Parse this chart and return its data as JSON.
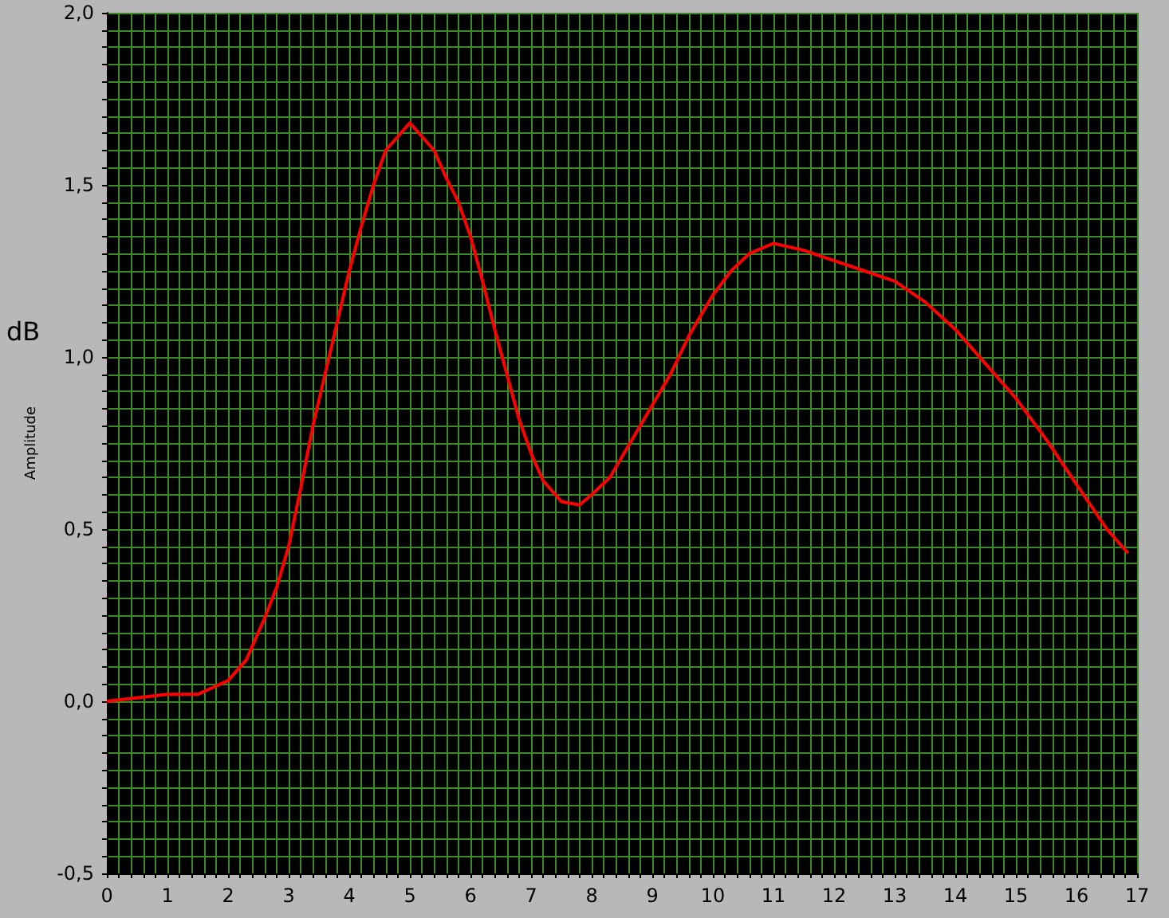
{
  "chart_data": {
    "type": "line",
    "ylabel": "Amplitude",
    "annotations": [
      "dB"
    ],
    "xlim": [
      0,
      17
    ],
    "xticks": [
      0,
      {
        "value": 0.2,
        "label": null
      },
      {
        "value": 0.4,
        "label": null
      },
      {
        "value": 0.6,
        "label": null
      },
      {
        "value": 0.8,
        "label": null
      },
      1,
      {
        "value": 1.2,
        "label": null
      },
      {
        "value": 1.4,
        "label": null
      },
      {
        "value": 1.6,
        "label": null
      },
      {
        "value": 1.8,
        "label": null
      },
      2,
      {
        "value": 2.2,
        "label": null
      },
      {
        "value": 2.4,
        "label": null
      },
      {
        "value": 2.6,
        "label": null
      },
      {
        "value": 2.8,
        "label": null
      },
      3,
      {
        "value": 3.2,
        "label": null
      },
      {
        "value": 3.4,
        "label": null
      },
      {
        "value": 3.6,
        "label": null
      },
      {
        "value": 3.8,
        "label": null
      },
      4,
      {
        "value": 4.2,
        "label": null
      },
      {
        "value": 4.4,
        "label": null
      },
      {
        "value": 4.6,
        "label": null
      },
      {
        "value": 4.8,
        "label": null
      },
      5,
      {
        "value": 5.2,
        "label": null
      },
      {
        "value": 5.4,
        "label": null
      },
      {
        "value": 5.6,
        "label": null
      },
      {
        "value": 5.8,
        "label": null
      },
      6,
      {
        "value": 6.2,
        "label": null
      },
      {
        "value": 6.4,
        "label": null
      },
      {
        "value": 6.6,
        "label": null
      },
      {
        "value": 6.8,
        "label": null
      },
      7,
      {
        "value": 7.2,
        "label": null
      },
      {
        "value": 7.4,
        "label": null
      },
      {
        "value": 7.6,
        "label": null
      },
      {
        "value": 7.8,
        "label": null
      },
      8,
      {
        "value": 8.2,
        "label": null
      },
      {
        "value": 8.4,
        "label": null
      },
      {
        "value": 8.6,
        "label": null
      },
      {
        "value": 8.8,
        "label": null
      },
      9,
      {
        "value": 9.2,
        "label": null
      },
      {
        "value": 9.4,
        "label": null
      },
      {
        "value": 9.6,
        "label": null
      },
      {
        "value": 9.8,
        "label": null
      },
      10,
      {
        "value": 10.2,
        "label": null
      },
      {
        "value": 10.4,
        "label": null
      },
      {
        "value": 10.6,
        "label": null
      },
      {
        "value": 10.8,
        "label": null
      },
      11,
      {
        "value": 11.2,
        "label": null
      },
      {
        "value": 11.4,
        "label": null
      },
      {
        "value": 11.6,
        "label": null
      },
      {
        "value": 11.8,
        "label": null
      },
      12,
      {
        "value": 12.2,
        "label": null
      },
      {
        "value": 12.4,
        "label": null
      },
      {
        "value": 12.6,
        "label": null
      },
      {
        "value": 12.8,
        "label": null
      },
      13,
      {
        "value": 13.2,
        "label": null
      },
      {
        "value": 13.4,
        "label": null
      },
      {
        "value": 13.6,
        "label": null
      },
      {
        "value": 13.8,
        "label": null
      },
      14,
      {
        "value": 14.2,
        "label": null
      },
      {
        "value": 14.4,
        "label": null
      },
      {
        "value": 14.6,
        "label": null
      },
      {
        "value": 14.8,
        "label": null
      },
      15,
      {
        "value": 15.2,
        "label": null
      },
      {
        "value": 15.4,
        "label": null
      },
      {
        "value": 15.6,
        "label": null
      },
      {
        "value": 15.8,
        "label": null
      },
      16,
      {
        "value": 16.2,
        "label": null
      },
      {
        "value": 16.4,
        "label": null
      },
      {
        "value": 16.6,
        "label": null
      },
      {
        "value": 16.8,
        "label": null
      },
      17
    ],
    "ylim": [
      -0.5,
      2
    ],
    "yticks": [
      {
        "value": -0.5,
        "label": "-0,5"
      },
      {
        "value": -0.45,
        "label": null
      },
      {
        "value": -0.4,
        "label": null
      },
      {
        "value": -0.35,
        "label": null
      },
      {
        "value": -0.3,
        "label": null
      },
      {
        "value": -0.25,
        "label": null
      },
      {
        "value": -0.2,
        "label": null
      },
      {
        "value": -0.15,
        "label": null
      },
      {
        "value": -0.1,
        "label": null
      },
      {
        "value": -0.05,
        "label": null
      },
      {
        "value": 0,
        "label": "0,0"
      },
      {
        "value": 0.05,
        "label": null
      },
      {
        "value": 0.1,
        "label": null
      },
      {
        "value": 0.15,
        "label": null
      },
      {
        "value": 0.2,
        "label": null
      },
      {
        "value": 0.25,
        "label": null
      },
      {
        "value": 0.3,
        "label": null
      },
      {
        "value": 0.35,
        "label": null
      },
      {
        "value": 0.4,
        "label": null
      },
      {
        "value": 0.45,
        "label": null
      },
      {
        "value": 0.5,
        "label": "0,5"
      },
      {
        "value": 0.55,
        "label": null
      },
      {
        "value": 0.6,
        "label": null
      },
      {
        "value": 0.65,
        "label": null
      },
      {
        "value": 0.7,
        "label": null
      },
      {
        "value": 0.75,
        "label": null
      },
      {
        "value": 0.8,
        "label": null
      },
      {
        "value": 0.85,
        "label": null
      },
      {
        "value": 0.9,
        "label": null
      },
      {
        "value": 0.95,
        "label": null
      },
      {
        "value": 1,
        "label": "1,0"
      },
      {
        "value": 1.05,
        "label": null
      },
      {
        "value": 1.1,
        "label": null
      },
      {
        "value": 1.15,
        "label": null
      },
      {
        "value": 1.2,
        "label": null
      },
      {
        "value": 1.25,
        "label": null
      },
      {
        "value": 1.3,
        "label": null
      },
      {
        "value": 1.35,
        "label": null
      },
      {
        "value": 1.4,
        "label": null
      },
      {
        "value": 1.45,
        "label": null
      },
      {
        "value": 1.5,
        "label": "1,5"
      },
      {
        "value": 1.55,
        "label": null
      },
      {
        "value": 1.6,
        "label": null
      },
      {
        "value": 1.65,
        "label": null
      },
      {
        "value": 1.7,
        "label": null
      },
      {
        "value": 1.75,
        "label": null
      },
      {
        "value": 1.8,
        "label": null
      },
      {
        "value": 1.85,
        "label": null
      },
      {
        "value": 1.9,
        "label": null
      },
      {
        "value": 1.95,
        "label": null
      },
      {
        "value": 2,
        "label": "2,0"
      }
    ],
    "grid": true,
    "x": [
      0,
      0.5,
      1,
      1.5,
      2,
      2.3,
      2.6,
      2.8,
      3,
      3.2,
      3.4,
      3.6,
      3.8,
      4,
      4.2,
      4.4,
      4.6,
      4.8,
      5,
      5.2,
      5.4,
      5.6,
      5.8,
      6,
      6.2,
      6.4,
      6.6,
      6.8,
      7,
      7.2,
      7.5,
      7.8,
      8,
      8.3,
      8.6,
      9,
      9.3,
      9.6,
      10,
      10.3,
      10.6,
      11,
      11.5,
      12,
      12.5,
      13,
      13.5,
      14,
      14.5,
      15,
      15.5,
      16,
      16.5,
      16.85
    ],
    "series": [
      {
        "color": "#ff0000",
        "values": [
          0,
          0.01,
          0.02,
          0.02,
          0.06,
          0.12,
          0.24,
          0.33,
          0.45,
          0.62,
          0.8,
          0.95,
          1.1,
          1.25,
          1.38,
          1.5,
          1.6,
          1.64,
          1.68,
          1.64,
          1.6,
          1.52,
          1.45,
          1.35,
          1.22,
          1.08,
          0.95,
          0.82,
          0.72,
          0.64,
          0.58,
          0.57,
          0.6,
          0.65,
          0.74,
          0.86,
          0.95,
          1.06,
          1.18,
          1.25,
          1.3,
          1.33,
          1.31,
          1.28,
          1.25,
          1.22,
          1.16,
          1.08,
          0.98,
          0.88,
          0.76,
          0.63,
          0.5,
          0.43
        ]
      }
    ]
  }
}
